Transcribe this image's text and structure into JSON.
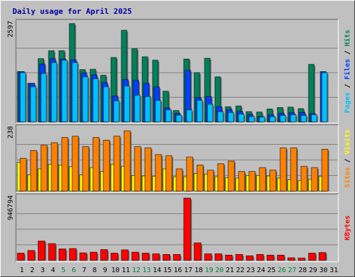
{
  "chart_data": {
    "type": "bar",
    "title": "Daily usage for April 2025",
    "categories": [
      "1",
      "2",
      "3",
      "4",
      "5",
      "6",
      "7",
      "8",
      "9",
      "10",
      "11",
      "12",
      "13",
      "14",
      "15",
      "16",
      "17",
      "18",
      "19",
      "20",
      "21",
      "22",
      "23",
      "24",
      "25",
      "26",
      "27",
      "28",
      "29",
      "30",
      "31"
    ],
    "weekend_days": [
      "5",
      "6",
      "12",
      "13",
      "19",
      "20",
      "26",
      "27"
    ],
    "colors": {
      "background": "#c0c0c0",
      "title": "#0000a0",
      "hits": "#00805c",
      "files": "#0040ff",
      "pages": "#00c0ff",
      "visits": "#ffff00",
      "sites": "#ff8000",
      "kbytes": "#ff0000",
      "weekend_label": "#008040",
      "weekday_label": "#000000"
    },
    "panels": [
      {
        "id": "hits-files-pages",
        "ymax": 2597,
        "ymax_label": "2597",
        "legend": [
          {
            "name": "Pages",
            "color": "#00c0ff"
          },
          {
            "name": "Files",
            "color": "#0040ff"
          },
          {
            "name": "Hits",
            "color": "#00805c"
          }
        ],
        "series": [
          {
            "name": "Hits",
            "color": "#00805c",
            "values": [
              1330,
              1020,
              1670,
              1880,
              1880,
              2597,
              1380,
              1390,
              1230,
              1700,
              2420,
              1930,
              1720,
              1630,
              810,
              300,
              1660,
              1300,
              1680,
              1190,
              400,
              420,
              270,
              260,
              340,
              380,
              390,
              350,
              1520,
              0,
              0
            ]
          },
          {
            "name": "Files",
            "color": "#0040ff",
            "values": [
              1330,
              1020,
              1530,
              1670,
              1660,
              1640,
              1290,
              1240,
              1040,
              680,
              1120,
              1100,
              1020,
              920,
              370,
              220,
              1360,
              640,
              670,
              400,
              320,
              280,
              190,
              140,
              190,
              230,
              240,
              250,
              220,
              1330,
              0
            ]
          },
          {
            "name": "Pages",
            "color": "#00c0ff",
            "values": [
              1300,
              930,
              1280,
              1570,
              1630,
              1570,
              1190,
              1140,
              930,
              560,
              950,
              710,
              670,
              570,
              320,
              180,
              320,
              570,
              470,
              270,
              250,
              210,
              140,
              130,
              140,
              170,
              190,
              170,
              190,
              1300,
              0
            ]
          }
        ]
      },
      {
        "id": "visits-sites",
        "ymax": 238,
        "ymax_label": "238",
        "legend": [
          {
            "name": "Sites",
            "color": "#ff8000"
          },
          {
            "name": "Visits",
            "color": "#ffff00"
          }
        ],
        "series": [
          {
            "name": "Visits",
            "color": "#ffff00",
            "values": [
              110,
              62,
              85,
              103,
              100,
              93,
              62,
              90,
              75,
              103,
              95,
              60,
              58,
              56,
              85,
              55,
              55,
              68,
              65,
              55,
              52,
              50,
              60,
              60,
              58,
              50,
              43,
              40,
              45,
              56,
              0
            ]
          },
          {
            "name": "Sites",
            "color": "#ff8000",
            "values": [
              125,
              155,
              175,
              185,
              205,
              210,
              170,
              205,
              195,
              210,
              230,
              170,
              165,
              140,
              135,
              85,
              130,
              100,
              80,
              105,
              115,
              75,
              75,
              90,
              80,
              165,
              165,
              95,
              90,
              160,
              0
            ]
          }
        ]
      },
      {
        "id": "kbytes",
        "ymax": 946794,
        "ymax_label": "946794",
        "legend": [
          {
            "name": "KBytes",
            "color": "#ff0000"
          }
        ],
        "series": [
          {
            "name": "KBytes",
            "color": "#ff0000",
            "values": [
              110000,
              150000,
              295000,
              255000,
              175000,
              180000,
              115000,
              125000,
              165000,
              110000,
              160000,
              125000,
              110000,
              100000,
              90000,
              90000,
              946794,
              265000,
              100000,
              100000,
              80000,
              90000,
              70000,
              90000,
              80000,
              80000,
              40000,
              35000,
              110000,
              120000,
              0
            ]
          }
        ]
      }
    ]
  }
}
